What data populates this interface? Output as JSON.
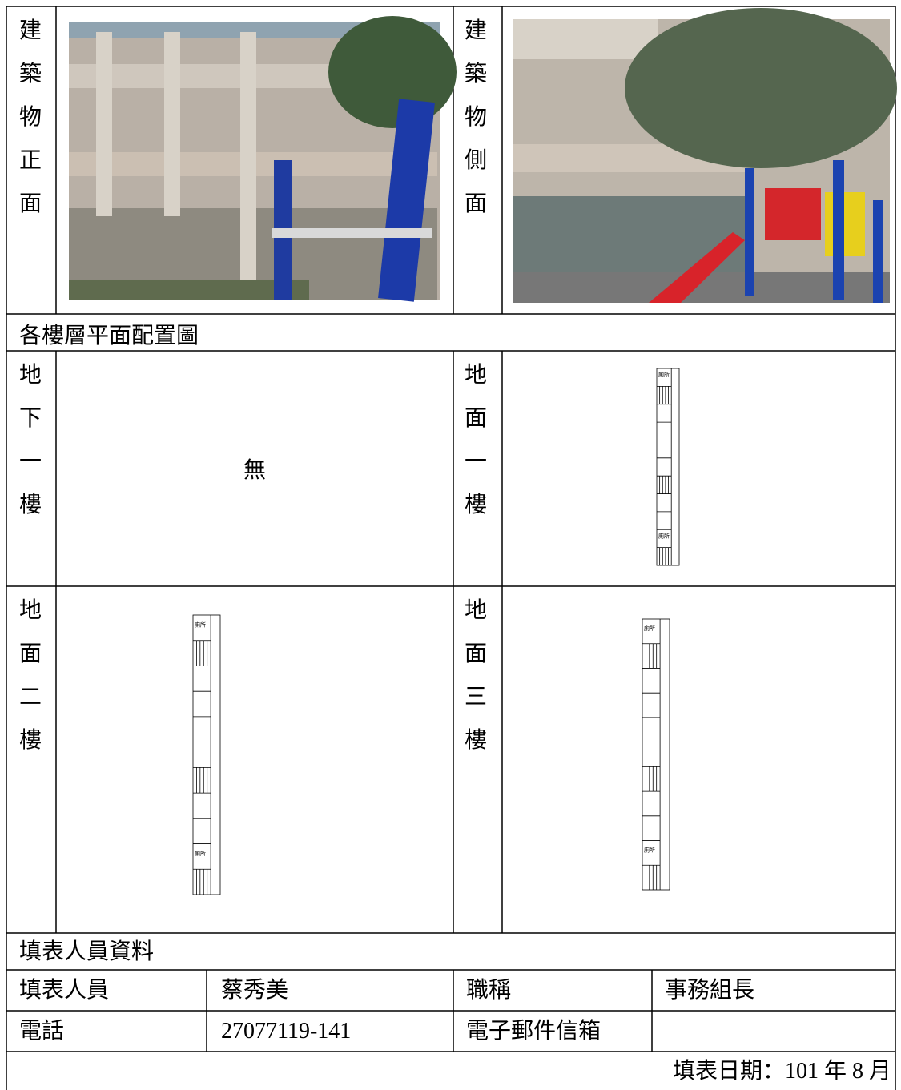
{
  "photos": [
    {
      "label": "建築物正面"
    },
    {
      "label": "建築物側面"
    }
  ],
  "floor_plan_title": "各樓層平面配置圖",
  "floors": [
    {
      "label": "地下一樓",
      "content": "無"
    },
    {
      "label": "地面一樓",
      "plan_labels": [
        "廁所",
        "廁所"
      ]
    },
    {
      "label": "地面二樓",
      "plan_labels": [
        "廁所",
        "廁所"
      ]
    },
    {
      "label": "地面三樓",
      "plan_labels": [
        "廁所",
        "廁所"
      ]
    }
  ],
  "filler": {
    "title": "填表人員資料",
    "rows": [
      [
        "填表人員",
        "蔡秀美",
        "職稱",
        "事務組長"
      ],
      [
        "電話",
        "27077119-141",
        "電子郵件信箱"
      ]
    ]
  },
  "date": "填表日期：101 年 8 月"
}
